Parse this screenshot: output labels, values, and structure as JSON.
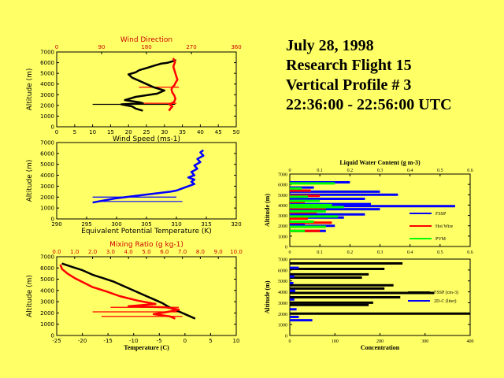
{
  "title": {
    "line1": "July 28, 1998",
    "line2": "Research Flight 15",
    "line3": "Vertical Profile # 3",
    "line4": "22:36:00 - 22:56:00 UTC"
  },
  "colors": {
    "background": "#ffff66",
    "black": "#000000",
    "red": "#ff0000",
    "blue": "#0000ff",
    "green": "#00ff00",
    "redAxis": "#cc0000"
  },
  "chart_data": [
    {
      "type": "line",
      "id": "wind",
      "xlabel": "Wind Speed (ms-1)",
      "x2label": "Wind Direction",
      "ylabel": "Altitude (m)",
      "xlim": [
        0,
        50
      ],
      "xticks": [
        0,
        5,
        10,
        15,
        20,
        25,
        30,
        35,
        40,
        45,
        50
      ],
      "x2lim": [
        0,
        360
      ],
      "x2ticks": [
        0,
        90,
        180,
        270,
        360
      ],
      "ylim": [
        0,
        7000
      ],
      "yticks": [
        0,
        1000,
        2000,
        3000,
        4000,
        5000,
        6000,
        7000
      ],
      "series": [
        {
          "name": "Wind Speed",
          "color": "#000000",
          "axis": "bottom",
          "x": [
            24,
            22,
            21,
            18,
            24,
            23,
            19,
            22,
            28,
            30,
            27,
            25,
            23,
            21,
            20,
            22,
            23,
            25,
            27,
            29,
            31,
            32,
            33,
            33
          ],
          "y": [
            1500,
            1700,
            1900,
            2100,
            2200,
            2300,
            2500,
            2800,
            3100,
            3400,
            3700,
            4000,
            4300,
            4600,
            4900,
            5100,
            5300,
            5500,
            5700,
            5900,
            6000,
            6100,
            6200,
            6300
          ]
        },
        {
          "name": "Wind Direction",
          "color": "#ff0000",
          "axis": "top",
          "x": [
            225,
            228,
            232,
            226,
            235,
            238,
            236,
            232,
            230,
            232,
            236,
            238,
            242,
            240,
            238,
            236,
            234,
            235,
            237,
            236,
            235,
            233
          ],
          "y": [
            1500,
            1700,
            1900,
            2100,
            2300,
            2600,
            2900,
            3200,
            3500,
            3700,
            3900,
            4100,
            4400,
            4700,
            5000,
            5300,
            5600,
            5800,
            6000,
            6200,
            6300,
            6400
          ]
        }
      ],
      "annotations": [
        {
          "axis": "bottom",
          "x": [
            10,
            33
          ],
          "y": 2100,
          "color": "#000000"
        },
        {
          "axis": "top",
          "x": [
            165,
            245
          ],
          "y": 3700,
          "color": "#ff0000"
        },
        {
          "axis": "top",
          "x": [
            150,
            240
          ],
          "y": 2200,
          "color": "#ff0000"
        }
      ]
    },
    {
      "type": "line",
      "id": "theta",
      "xlabel": "Equivalent Potential Temperature (K)",
      "ylabel": "Altitude (m)",
      "xlim": [
        290,
        320
      ],
      "xticks": [
        290,
        295,
        300,
        305,
        310,
        315,
        320
      ],
      "ylim": [
        0,
        7000
      ],
      "yticks": [
        0,
        1000,
        2000,
        3000,
        4000,
        5000,
        6000,
        7000
      ],
      "series": [
        {
          "name": "Theta-e",
          "color": "#0000ff",
          "x": [
            296,
            298,
            300,
            303,
            306,
            309,
            310,
            311,
            312,
            313,
            312.5,
            313,
            312,
            313,
            312.5,
            313.5,
            313,
            314,
            313.5,
            314.5,
            314,
            314.5
          ],
          "y": [
            1500,
            1700,
            1900,
            2100,
            2300,
            2500,
            2600,
            2800,
            3000,
            3200,
            3400,
            3600,
            3800,
            4000,
            4300,
            4600,
            4900,
            5200,
            5500,
            5800,
            6100,
            6300
          ]
        }
      ],
      "annotations": [
        {
          "x": [
            296,
            310
          ],
          "y": 2000,
          "color": "#0000ff"
        },
        {
          "x": [
            297,
            311
          ],
          "y": 1600,
          "color": "#0000ff"
        }
      ]
    },
    {
      "type": "line",
      "id": "temp",
      "xlabel": "Temperature (C)",
      "x2label": "Mixing Ratio (g kg-1)",
      "ylabel": "Altitude (m)",
      "xlim": [
        -25,
        10
      ],
      "xticks": [
        -25,
        -20,
        -15,
        -10,
        -5,
        0,
        5,
        10
      ],
      "x2lim": [
        0,
        10
      ],
      "x2ticks": [
        0.0,
        1.0,
        2.0,
        3.0,
        4.0,
        5.0,
        6.0,
        7.0,
        8.0,
        9.0,
        10.0
      ],
      "ylim": [
        0,
        7000
      ],
      "yticks": [
        0,
        1000,
        2000,
        3000,
        4000,
        5000,
        6000,
        7000
      ],
      "series": [
        {
          "name": "Temperature",
          "color": "#000000",
          "axis": "bottom",
          "x": [
            2,
            0.5,
            -1,
            -3,
            -4.5,
            -6,
            -8,
            -10,
            -12,
            -14,
            -16,
            -18,
            -20,
            -22,
            -24
          ],
          "y": [
            1500,
            1800,
            2100,
            2500,
            2900,
            3200,
            3600,
            4000,
            4400,
            4800,
            5100,
            5400,
            5800,
            6100,
            6400
          ]
        },
        {
          "name": "Mixing Ratio",
          "color": "#ff0000",
          "axis": "top",
          "x": [
            6.6,
            6.3,
            5.4,
            6.2,
            6.8,
            6.1,
            4.0,
            5.5,
            4.5,
            3.5,
            2.8,
            2.0,
            1.5,
            1.0,
            0.6,
            0.3,
            0.2
          ],
          "y": [
            1500,
            1700,
            1900,
            2100,
            2300,
            2500,
            2600,
            2800,
            3100,
            3500,
            3900,
            4300,
            4700,
            5100,
            5500,
            5900,
            6300
          ]
        }
      ],
      "annotations": [
        {
          "axis": "top",
          "x": [
            2.0,
            6.8
          ],
          "y": 2100,
          "color": "#ff0000"
        },
        {
          "axis": "top",
          "x": [
            2.5,
            7.0
          ],
          "y": 1700,
          "color": "#ff0000"
        },
        {
          "axis": "top",
          "x": [
            3.0,
            6.8
          ],
          "y": 2500,
          "color": "#ff0000"
        }
      ]
    },
    {
      "type": "bar",
      "id": "lwc",
      "orientation": "horizontal",
      "xlabel": "Liquid Water Content (g m-3)",
      "ylabel": "Altitude (m)",
      "xlim": [
        0,
        0.6
      ],
      "xticks": [
        0,
        0.1,
        0.2,
        0.3,
        0.4,
        0.5,
        0.6
      ],
      "ylim": [
        0,
        7000
      ],
      "yticks": [
        0,
        1000,
        2000,
        3000,
        4000,
        5000,
        6000,
        7000
      ],
      "legend": [
        "FSSP",
        "Hot Wire",
        "PVM"
      ],
      "series": [
        {
          "name": "FSSP",
          "color": "#0000ff",
          "y": [
            1500,
            2000,
            2200,
            2800,
            3100,
            3600,
            3900,
            4100,
            4600,
            5000,
            5300,
            5700,
            6200
          ],
          "values": [
            0.12,
            0.15,
            0.05,
            0.18,
            0.25,
            0.3,
            0.55,
            0.27,
            0.25,
            0.36,
            0.3,
            0.08,
            0.2
          ]
        },
        {
          "name": "Hot Wire",
          "color": "#ff0000",
          "y": [
            1500,
            1900,
            2300,
            2700,
            3300,
            3700,
            4300,
            4900,
            5400
          ],
          "values": [
            0.1,
            0.08,
            0.14,
            0.06,
            0.09,
            0.12,
            0.05,
            0.1,
            0.07
          ]
        },
        {
          "name": "PVM",
          "color": "#00ff00",
          "y": [
            1500,
            1900,
            2400,
            2900,
            3400,
            3800,
            4000,
            4400,
            4800,
            5600,
            6100
          ],
          "values": [
            0.05,
            0.12,
            0.08,
            0.16,
            0.12,
            0.18,
            0.14,
            0.1,
            0.06,
            0.04,
            0.15
          ]
        }
      ]
    },
    {
      "type": "bar",
      "id": "conc",
      "orientation": "horizontal",
      "xlabel": "Concentration",
      "ylabel": "Altitude (m)",
      "xlim": [
        0,
        400
      ],
      "xticks": [
        0,
        100,
        200,
        300,
        400
      ],
      "ylim": [
        0,
        7000
      ],
      "yticks": [
        0,
        1000,
        2000,
        3000,
        4000,
        5000,
        6000,
        7000
      ],
      "legend": [
        "FSSP (cm-3)",
        "2D-C (liter)"
      ],
      "series": [
        {
          "name": "FSSP (cm-3)",
          "color": "#000000",
          "y": [
            2000,
            2800,
            3000,
            3500,
            3900,
            4300,
            4600,
            5300,
            5600,
            6100,
            6600
          ],
          "values": [
            400,
            175,
            185,
            245,
            320,
            210,
            230,
            160,
            175,
            210,
            250
          ]
        },
        {
          "name": "2D-C (liter)",
          "color": "#0000ff",
          "y": [
            1400,
            1700,
            2400,
            3300,
            4100,
            4800,
            5400,
            6200
          ],
          "values": [
            50,
            20,
            15,
            10,
            12,
            8,
            10,
            20
          ]
        }
      ]
    }
  ]
}
